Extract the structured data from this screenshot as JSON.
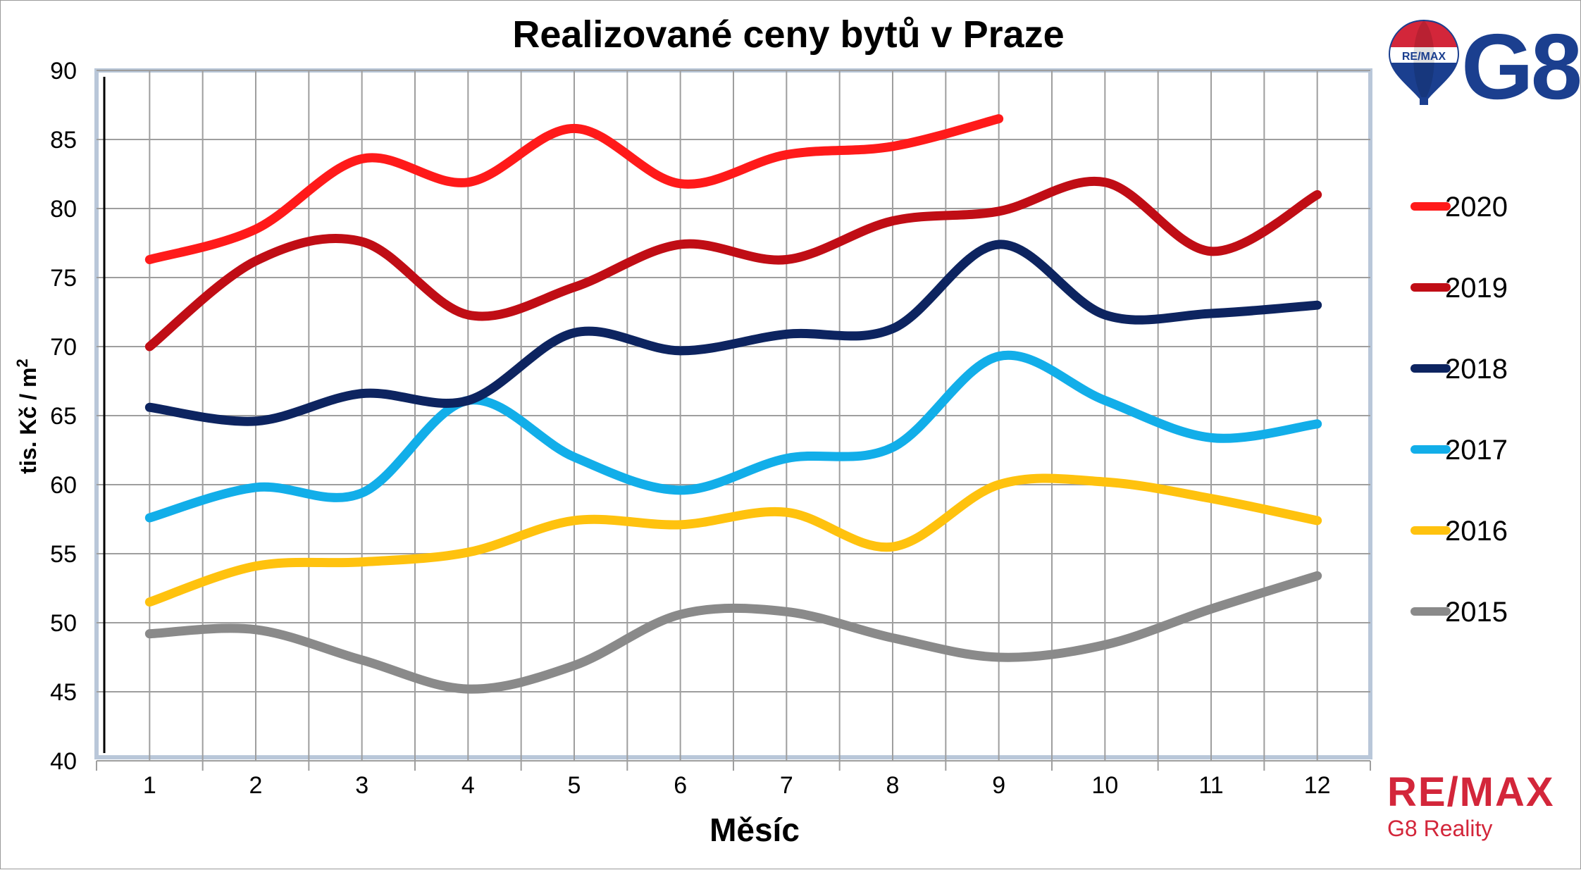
{
  "colors": {
    "2020": "#ff1a1a",
    "2019": "#c00d15",
    "2018": "#0d2460",
    "2017": "#12aee9",
    "2016": "#ffc20e",
    "2015": "#8a8a8a",
    "grid": "#9e9e9e",
    "plot_frame": "#b9c7d9",
    "remax_red": "#d3263a",
    "remax_blue": "#1b3f8f"
  },
  "logos": {
    "top_right": {
      "balloon_text": "RE/MAX",
      "brand_text": "G8"
    },
    "bottom_right": {
      "brand_text": "RE/MAX",
      "sub_text": "G8 Reality"
    }
  },
  "chart_data": {
    "type": "line",
    "title": "Realizované ceny bytů v Praze",
    "xlabel": "Měsíc",
    "ylabel": "tis. Kč / m",
    "ylabel_superscript": "2",
    "categories": [
      "1",
      "2",
      "3",
      "4",
      "5",
      "6",
      "7",
      "8",
      "9",
      "10",
      "11",
      "12"
    ],
    "ylim": [
      40,
      90
    ],
    "yticks": [
      40,
      45,
      50,
      55,
      60,
      65,
      70,
      75,
      80,
      85,
      90
    ],
    "grid": true,
    "smooth": true,
    "legend_position": "right",
    "series": [
      {
        "name": "2020",
        "values": [
          76.3,
          78.5,
          83.6,
          81.9,
          85.8,
          81.8,
          83.9,
          84.5,
          86.5,
          null,
          null,
          null
        ]
      },
      {
        "name": "2019",
        "values": [
          70.0,
          76.2,
          77.6,
          72.3,
          74.3,
          77.4,
          76.3,
          79.1,
          79.8,
          81.9,
          76.9,
          81.0
        ]
      },
      {
        "name": "2018",
        "values": [
          65.6,
          64.6,
          66.6,
          66.1,
          71.0,
          69.7,
          70.9,
          71.3,
          77.4,
          72.3,
          72.4,
          73.0
        ]
      },
      {
        "name": "2017",
        "values": [
          57.6,
          59.8,
          59.4,
          66.1,
          62.0,
          59.6,
          61.9,
          62.7,
          69.3,
          66.1,
          63.4,
          64.4
        ]
      },
      {
        "name": "2016",
        "values": [
          51.5,
          54.1,
          54.4,
          55.1,
          57.4,
          57.1,
          58.0,
          55.5,
          60.0,
          60.2,
          59.0,
          57.4
        ]
      },
      {
        "name": "2015",
        "values": [
          49.2,
          49.5,
          47.3,
          45.2,
          46.9,
          50.6,
          50.8,
          48.9,
          47.5,
          48.4,
          51.0,
          53.4
        ]
      }
    ]
  }
}
